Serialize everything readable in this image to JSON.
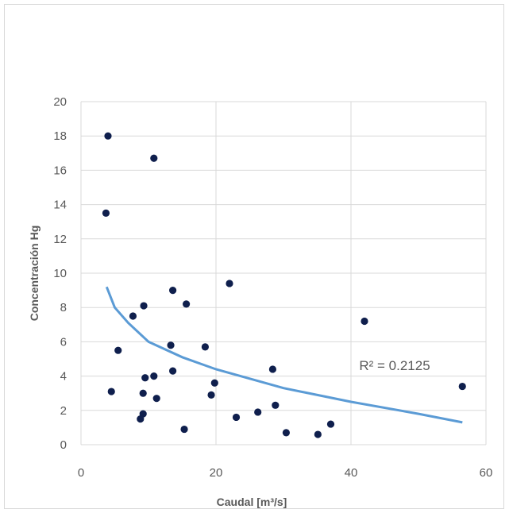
{
  "chart_data": {
    "type": "scatter",
    "title": "",
    "xlabel": "Caudal [m³/s]",
    "ylabel": "Concentración Hg",
    "xlim": [
      0,
      60
    ],
    "ylim": [
      0,
      20
    ],
    "x_ticks": [
      "0",
      "20",
      "40",
      "60"
    ],
    "y_ticks": [
      "0",
      "2",
      "4",
      "6",
      "8",
      "10",
      "12",
      "14",
      "16",
      "18",
      "20"
    ],
    "grid": "horizontal",
    "trendline": {
      "type": "power",
      "label": "R² = 0.2125",
      "x": [
        3.8,
        5,
        7,
        10,
        15,
        20,
        30,
        40,
        50,
        56.5
      ],
      "y": [
        9.2,
        8.0,
        7.1,
        6.0,
        5.1,
        4.4,
        3.3,
        2.5,
        1.8,
        1.3
      ]
    },
    "series": [
      {
        "color": "#0f1f4d",
        "x": [
          4.0,
          3.7,
          10.8,
          4.5,
          5.5,
          7.7,
          9.3,
          9.5,
          9.2,
          9.2,
          8.8,
          10.8,
          11.2,
          13.3,
          13.6,
          13.6,
          15.6,
          15.3,
          18.4,
          19.3,
          19.8,
          22.0,
          23.0,
          26.2,
          28.4,
          28.8,
          30.4,
          35.1,
          37.0,
          42.0,
          56.5
        ],
        "y": [
          18.0,
          13.5,
          16.7,
          3.1,
          5.5,
          7.5,
          8.1,
          3.9,
          3.0,
          1.8,
          1.5,
          4.0,
          2.7,
          5.8,
          9.0,
          4.3,
          8.2,
          0.9,
          5.7,
          2.9,
          3.6,
          9.4,
          1.6,
          1.9,
          4.4,
          2.3,
          0.7,
          0.6,
          1.2,
          7.2,
          3.4
        ]
      }
    ],
    "colors": {
      "points": "#0f1f4d",
      "trendline": "#5b9bd5",
      "grid": "#d9d9d9"
    }
  }
}
